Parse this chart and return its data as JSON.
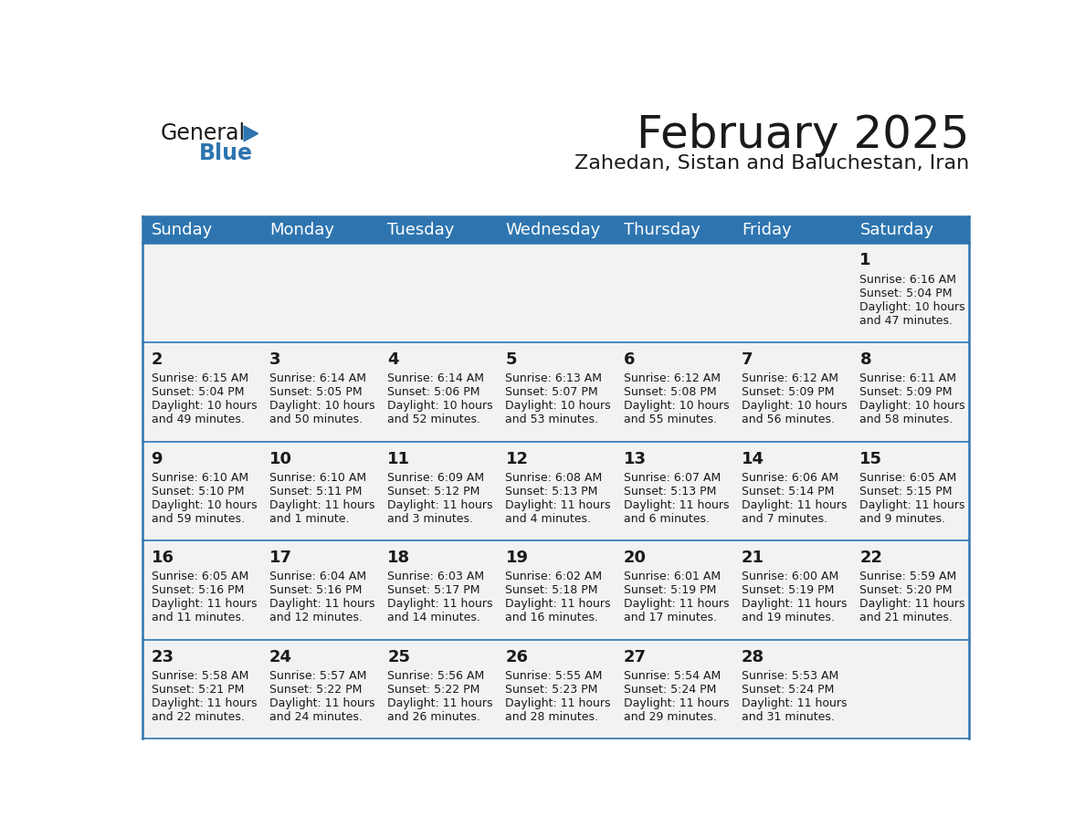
{
  "title": "February 2025",
  "subtitle": "Zahedan, Sistan and Baluchestan, Iran",
  "header_bg": "#2E75B0",
  "header_text_color": "#FFFFFF",
  "cell_bg": "#F2F2F2",
  "border_color": "#2E75B0",
  "day_names": [
    "Sunday",
    "Monday",
    "Tuesday",
    "Wednesday",
    "Thursday",
    "Friday",
    "Saturday"
  ],
  "days": [
    {
      "day": 1,
      "col": 6,
      "row": 0,
      "sunrise": "6:16 AM",
      "sunset": "5:04 PM",
      "daylight_line1": "Daylight: 10 hours",
      "daylight_line2": "and 47 minutes."
    },
    {
      "day": 2,
      "col": 0,
      "row": 1,
      "sunrise": "6:15 AM",
      "sunset": "5:04 PM",
      "daylight_line1": "Daylight: 10 hours",
      "daylight_line2": "and 49 minutes."
    },
    {
      "day": 3,
      "col": 1,
      "row": 1,
      "sunrise": "6:14 AM",
      "sunset": "5:05 PM",
      "daylight_line1": "Daylight: 10 hours",
      "daylight_line2": "and 50 minutes."
    },
    {
      "day": 4,
      "col": 2,
      "row": 1,
      "sunrise": "6:14 AM",
      "sunset": "5:06 PM",
      "daylight_line1": "Daylight: 10 hours",
      "daylight_line2": "and 52 minutes."
    },
    {
      "day": 5,
      "col": 3,
      "row": 1,
      "sunrise": "6:13 AM",
      "sunset": "5:07 PM",
      "daylight_line1": "Daylight: 10 hours",
      "daylight_line2": "and 53 minutes."
    },
    {
      "day": 6,
      "col": 4,
      "row": 1,
      "sunrise": "6:12 AM",
      "sunset": "5:08 PM",
      "daylight_line1": "Daylight: 10 hours",
      "daylight_line2": "and 55 minutes."
    },
    {
      "day": 7,
      "col": 5,
      "row": 1,
      "sunrise": "6:12 AM",
      "sunset": "5:09 PM",
      "daylight_line1": "Daylight: 10 hours",
      "daylight_line2": "and 56 minutes."
    },
    {
      "day": 8,
      "col": 6,
      "row": 1,
      "sunrise": "6:11 AM",
      "sunset": "5:09 PM",
      "daylight_line1": "Daylight: 10 hours",
      "daylight_line2": "and 58 minutes."
    },
    {
      "day": 9,
      "col": 0,
      "row": 2,
      "sunrise": "6:10 AM",
      "sunset": "5:10 PM",
      "daylight_line1": "Daylight: 10 hours",
      "daylight_line2": "and 59 minutes."
    },
    {
      "day": 10,
      "col": 1,
      "row": 2,
      "sunrise": "6:10 AM",
      "sunset": "5:11 PM",
      "daylight_line1": "Daylight: 11 hours",
      "daylight_line2": "and 1 minute."
    },
    {
      "day": 11,
      "col": 2,
      "row": 2,
      "sunrise": "6:09 AM",
      "sunset": "5:12 PM",
      "daylight_line1": "Daylight: 11 hours",
      "daylight_line2": "and 3 minutes."
    },
    {
      "day": 12,
      "col": 3,
      "row": 2,
      "sunrise": "6:08 AM",
      "sunset": "5:13 PM",
      "daylight_line1": "Daylight: 11 hours",
      "daylight_line2": "and 4 minutes."
    },
    {
      "day": 13,
      "col": 4,
      "row": 2,
      "sunrise": "6:07 AM",
      "sunset": "5:13 PM",
      "daylight_line1": "Daylight: 11 hours",
      "daylight_line2": "and 6 minutes."
    },
    {
      "day": 14,
      "col": 5,
      "row": 2,
      "sunrise": "6:06 AM",
      "sunset": "5:14 PM",
      "daylight_line1": "Daylight: 11 hours",
      "daylight_line2": "and 7 minutes."
    },
    {
      "day": 15,
      "col": 6,
      "row": 2,
      "sunrise": "6:05 AM",
      "sunset": "5:15 PM",
      "daylight_line1": "Daylight: 11 hours",
      "daylight_line2": "and 9 minutes."
    },
    {
      "day": 16,
      "col": 0,
      "row": 3,
      "sunrise": "6:05 AM",
      "sunset": "5:16 PM",
      "daylight_line1": "Daylight: 11 hours",
      "daylight_line2": "and 11 minutes."
    },
    {
      "day": 17,
      "col": 1,
      "row": 3,
      "sunrise": "6:04 AM",
      "sunset": "5:16 PM",
      "daylight_line1": "Daylight: 11 hours",
      "daylight_line2": "and 12 minutes."
    },
    {
      "day": 18,
      "col": 2,
      "row": 3,
      "sunrise": "6:03 AM",
      "sunset": "5:17 PM",
      "daylight_line1": "Daylight: 11 hours",
      "daylight_line2": "and 14 minutes."
    },
    {
      "day": 19,
      "col": 3,
      "row": 3,
      "sunrise": "6:02 AM",
      "sunset": "5:18 PM",
      "daylight_line1": "Daylight: 11 hours",
      "daylight_line2": "and 16 minutes."
    },
    {
      "day": 20,
      "col": 4,
      "row": 3,
      "sunrise": "6:01 AM",
      "sunset": "5:19 PM",
      "daylight_line1": "Daylight: 11 hours",
      "daylight_line2": "and 17 minutes."
    },
    {
      "day": 21,
      "col": 5,
      "row": 3,
      "sunrise": "6:00 AM",
      "sunset": "5:19 PM",
      "daylight_line1": "Daylight: 11 hours",
      "daylight_line2": "and 19 minutes."
    },
    {
      "day": 22,
      "col": 6,
      "row": 3,
      "sunrise": "5:59 AM",
      "sunset": "5:20 PM",
      "daylight_line1": "Daylight: 11 hours",
      "daylight_line2": "and 21 minutes."
    },
    {
      "day": 23,
      "col": 0,
      "row": 4,
      "sunrise": "5:58 AM",
      "sunset": "5:21 PM",
      "daylight_line1": "Daylight: 11 hours",
      "daylight_line2": "and 22 minutes."
    },
    {
      "day": 24,
      "col": 1,
      "row": 4,
      "sunrise": "5:57 AM",
      "sunset": "5:22 PM",
      "daylight_line1": "Daylight: 11 hours",
      "daylight_line2": "and 24 minutes."
    },
    {
      "day": 25,
      "col": 2,
      "row": 4,
      "sunrise": "5:56 AM",
      "sunset": "5:22 PM",
      "daylight_line1": "Daylight: 11 hours",
      "daylight_line2": "and 26 minutes."
    },
    {
      "day": 26,
      "col": 3,
      "row": 4,
      "sunrise": "5:55 AM",
      "sunset": "5:23 PM",
      "daylight_line1": "Daylight: 11 hours",
      "daylight_line2": "and 28 minutes."
    },
    {
      "day": 27,
      "col": 4,
      "row": 4,
      "sunrise": "5:54 AM",
      "sunset": "5:24 PM",
      "daylight_line1": "Daylight: 11 hours",
      "daylight_line2": "and 29 minutes."
    },
    {
      "day": 28,
      "col": 5,
      "row": 4,
      "sunrise": "5:53 AM",
      "sunset": "5:24 PM",
      "daylight_line1": "Daylight: 11 hours",
      "daylight_line2": "and 31 minutes."
    }
  ],
  "title_fontsize": 36,
  "subtitle_fontsize": 16,
  "dayname_fontsize": 13,
  "daynum_fontsize": 13,
  "info_fontsize": 9,
  "logo_general_color": "#1a1a1a",
  "logo_blue_color": "#2E75B0",
  "logo_triangle_color": "#2E75B0"
}
